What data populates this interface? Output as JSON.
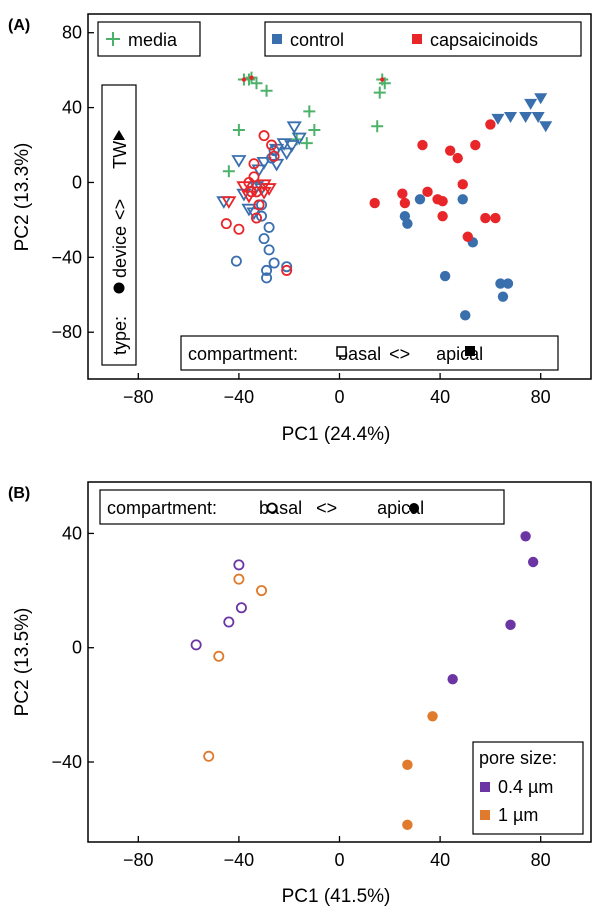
{
  "colors": {
    "control": "#3a6fae",
    "capsaicinoids": "#e8262a",
    "media": "#4cb26a",
    "pore_04": "#6b35a3",
    "pore_1": "#e07a2c"
  },
  "chart_data": [
    {
      "panel": "(A)",
      "type": "scatter",
      "xlabel": "PC1 (24.4%)",
      "ylabel": "PC2 (13.3%)",
      "xlim": [
        -100,
        100
      ],
      "ylim": [
        -105,
        90
      ],
      "xticks": [
        -80,
        -40,
        0,
        40,
        80
      ],
      "yticks": [
        80,
        40,
        0,
        -40,
        -80
      ],
      "xtick_labels": [
        "−80",
        "−40",
        "0",
        "40",
        "80"
      ],
      "ytick_labels": [
        "80",
        "40",
        "0",
        "−40",
        "−80"
      ],
      "legend": {
        "media": "media",
        "control": "control",
        "capsaicinoids": "capsaicinoids",
        "type_prefix": "type:",
        "type_device": "device",
        "type_sep": "<>",
        "type_tw": "TW",
        "compartment_prefix": "compartment:",
        "basal": "basal",
        "sep": "<>",
        "apical": "apical"
      },
      "series": [
        {
          "name": "media",
          "marker": "plus",
          "color": "media",
          "points": [
            [
              -36,
              55
            ],
            [
              -33,
              53
            ],
            [
              -29,
              49
            ],
            [
              -40,
              28
            ],
            [
              -44,
              6
            ],
            [
              -17,
              23
            ],
            [
              -13,
              21
            ],
            [
              -10,
              28
            ],
            [
              -12,
              38
            ],
            [
              15,
              30
            ],
            [
              16,
              48
            ],
            [
              18,
              53
            ],
            [
              -38,
              55
            ],
            [
              -35,
              56
            ],
            [
              17,
              55
            ]
          ]
        },
        {
          "name": "media-dots",
          "marker": "dot",
          "color": "capsaicinoids",
          "points": [
            [
              -38,
              55
            ],
            [
              -35,
              56
            ],
            [
              17,
              55
            ]
          ]
        },
        {
          "name": "control basal device",
          "marker": "open-circle",
          "color": "control",
          "points": [
            [
              -41,
              -42
            ],
            [
              -30,
              -30
            ],
            [
              -28,
              -36
            ],
            [
              -26,
              -43
            ],
            [
              -29,
              -47
            ],
            [
              -29,
              -51
            ],
            [
              -21,
              -45
            ],
            [
              -28,
              -24
            ],
            [
              -31,
              -18
            ],
            [
              -31,
              -12
            ],
            [
              -27,
              13
            ],
            [
              -26,
              17
            ]
          ]
        },
        {
          "name": "control basal TW",
          "marker": "open-triangle",
          "color": "control",
          "points": [
            [
              -46,
              -10
            ],
            [
              -36,
              -14
            ],
            [
              -34,
              -16
            ],
            [
              -33,
              -2
            ],
            [
              -32,
              7
            ],
            [
              -31,
              -3
            ],
            [
              -30,
              11
            ],
            [
              -25,
              18
            ],
            [
              -22,
              21
            ],
            [
              -19,
              20
            ],
            [
              -18,
              30
            ],
            [
              -16,
              24
            ],
            [
              -25,
              10
            ],
            [
              -21,
              16
            ],
            [
              -40,
              12
            ],
            [
              -38,
              -6
            ]
          ]
        },
        {
          "name": "capsaicinoids basal device",
          "marker": "open-circle",
          "color": "capsaicinoids",
          "points": [
            [
              -45,
              -22
            ],
            [
              -40,
              -25
            ],
            [
              -36,
              0
            ],
            [
              -35,
              -5
            ],
            [
              -34,
              3
            ],
            [
              -34,
              10
            ],
            [
              -33,
              -5
            ],
            [
              -32,
              -12
            ],
            [
              -33,
              -19
            ],
            [
              -30,
              25
            ],
            [
              -27,
              20
            ],
            [
              -26,
              14
            ],
            [
              -21,
              -47
            ]
          ]
        },
        {
          "name": "capsaicinoids basal TW",
          "marker": "open-triangle",
          "color": "capsaicinoids",
          "points": [
            [
              -44,
              -10
            ],
            [
              -38,
              -2
            ],
            [
              -36,
              -7
            ],
            [
              -30,
              -5
            ],
            [
              -30,
              -1
            ],
            [
              -28,
              -3
            ]
          ]
        },
        {
          "name": "control apical device",
          "marker": "filled-circle",
          "color": "control",
          "points": [
            [
              26,
              -18
            ],
            [
              27,
              -22
            ],
            [
              32,
              -9
            ],
            [
              49,
              -9
            ],
            [
              53,
              -32
            ],
            [
              42,
              -50
            ],
            [
              50,
              -71
            ],
            [
              64,
              -54
            ],
            [
              65,
              -61
            ],
            [
              67,
              -54
            ]
          ]
        },
        {
          "name": "control apical TW",
          "marker": "filled-triangle",
          "color": "control",
          "points": [
            [
              63,
              34
            ],
            [
              68,
              35
            ],
            [
              74,
              35
            ],
            [
              76,
              42
            ],
            [
              79,
              35
            ],
            [
              80,
              45
            ],
            [
              82,
              30
            ]
          ]
        },
        {
          "name": "capsaicinoids apical device",
          "marker": "filled-circle",
          "color": "capsaicinoids",
          "points": [
            [
              14,
              -11
            ],
            [
              33,
              20
            ],
            [
              35,
              -5
            ],
            [
              39,
              -9
            ],
            [
              41,
              -10
            ],
            [
              41,
              -18
            ],
            [
              44,
              17
            ],
            [
              47,
              13
            ],
            [
              49,
              -1
            ],
            [
              51,
              -29
            ],
            [
              54,
              20
            ],
            [
              58,
              -19
            ],
            [
              60,
              31
            ],
            [
              62,
              -19
            ],
            [
              26,
              -11
            ],
            [
              25,
              -6
            ]
          ]
        }
      ]
    },
    {
      "panel": "(B)",
      "type": "scatter",
      "xlabel": "PC1 (41.5%)",
      "ylabel": "PC2 (13.5%)",
      "xlim": [
        -100,
        100
      ],
      "ylim": [
        -68,
        58
      ],
      "xticks": [
        -80,
        -40,
        0,
        40,
        80
      ],
      "yticks": [
        40,
        0,
        -40
      ],
      "xtick_labels": [
        "−80",
        "−40",
        "0",
        "40",
        "80"
      ],
      "ytick_labels": [
        "40",
        "0",
        "−40"
      ],
      "legend": {
        "compartment_prefix": "compartment:",
        "basal": "basal",
        "sep": "<>",
        "apical": "apical",
        "pore_title": "pore size:",
        "pore_04": "0.4 µm",
        "pore_1": "1 µm"
      },
      "series": [
        {
          "name": "0.4 µm basal",
          "marker": "open-circle",
          "color": "pore_04",
          "points": [
            [
              -57,
              1
            ],
            [
              -44,
              9
            ],
            [
              -39,
              14
            ],
            [
              -40,
              29
            ]
          ]
        },
        {
          "name": "1 µm basal",
          "marker": "open-circle",
          "color": "pore_1",
          "points": [
            [
              -40,
              24
            ],
            [
              -31,
              20
            ],
            [
              -48,
              -3
            ],
            [
              -52,
              -38
            ]
          ]
        },
        {
          "name": "0.4 µm apical",
          "marker": "filled-circle",
          "color": "pore_04",
          "points": [
            [
              74,
              39
            ],
            [
              77,
              30
            ],
            [
              68,
              8
            ],
            [
              45,
              -11
            ]
          ]
        },
        {
          "name": "1 µm apical",
          "marker": "filled-circle",
          "color": "pore_1",
          "points": [
            [
              37,
              -24
            ],
            [
              27,
              -41
            ],
            [
              27,
              -62
            ]
          ]
        }
      ]
    }
  ]
}
